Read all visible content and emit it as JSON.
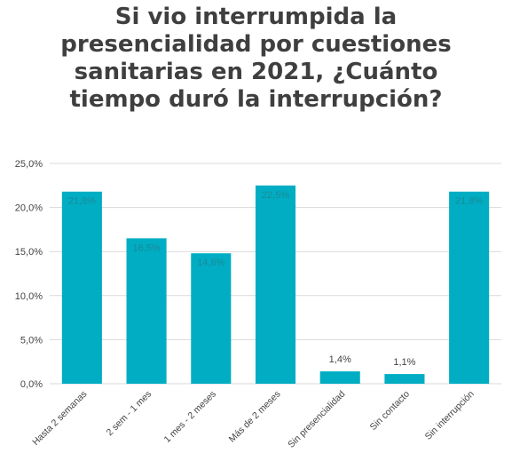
{
  "chart_data": {
    "type": "bar",
    "title_lines": [
      "Si vio interrumpida la",
      "presencialidad por cuestiones",
      "sanitarias en 2021, ¿Cuánto",
      "tiempo duró la interrupción?"
    ],
    "xlabel": "",
    "ylabel": "",
    "categories": [
      "Hasta 2 semanas",
      "2 sem - 1 mes",
      "1 mes - 2 meses",
      "Más de 2 meses",
      "Sin presencialidad",
      "Sin contacto",
      "Sin interrupción"
    ],
    "values": [
      21.8,
      16.5,
      14.8,
      22.5,
      1.4,
      1.1,
      21.8
    ],
    "value_labels": [
      "21,8%",
      "16,5%",
      "14,8%",
      "22,5%",
      "1,4%",
      "1,1%",
      "21,8%"
    ],
    "ylim": [
      0,
      25
    ],
    "yticks": [
      0,
      5,
      10,
      15,
      20,
      25
    ],
    "ytick_labels": [
      "0,0%",
      "5,0%",
      "10,0%",
      "15,0%",
      "20,0%",
      "25,0%"
    ],
    "grid": true,
    "legend": "none",
    "bar_color": "#00adc2",
    "grid_color": "#d9d9d9"
  }
}
